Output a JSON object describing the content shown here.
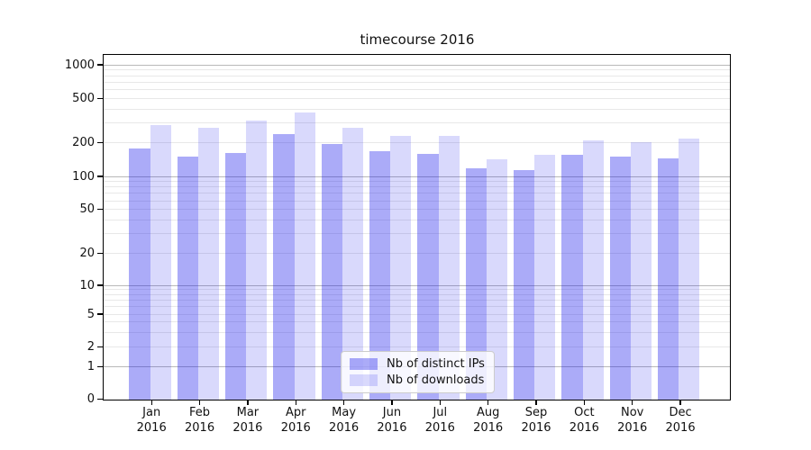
{
  "chart_data": {
    "type": "bar",
    "title": "timecourse 2016",
    "categories": [
      "Jan",
      "Feb",
      "Mar",
      "Apr",
      "May",
      "Jun",
      "Jul",
      "Aug",
      "Sep",
      "Oct",
      "Nov",
      "Dec"
    ],
    "year_label": "2016",
    "series": [
      {
        "name": "Nb of distinct IPs",
        "color": "rgba(21,21,235,0.36)",
        "values": [
          176,
          151,
          162,
          237,
          194,
          167,
          158,
          117,
          113,
          156,
          150,
          145
        ]
      },
      {
        "name": "Nb of downloads",
        "color": "rgba(21,21,235,0.16)",
        "values": [
          288,
          271,
          317,
          375,
          270,
          231,
          228,
          141,
          155,
          209,
          201,
          215
        ]
      }
    ],
    "yticks": [
      0,
      1,
      2,
      5,
      10,
      20,
      50,
      100,
      200,
      500,
      1000
    ],
    "yscale": "symlog",
    "ylim": [
      0,
      1200
    ],
    "grid": true,
    "legend_position": "lower center",
    "colors": {
      "major_grid": "#b8b8b8",
      "minor_grid": "#e8e8e8",
      "spine": "#000000",
      "background": "#ffffff"
    }
  }
}
